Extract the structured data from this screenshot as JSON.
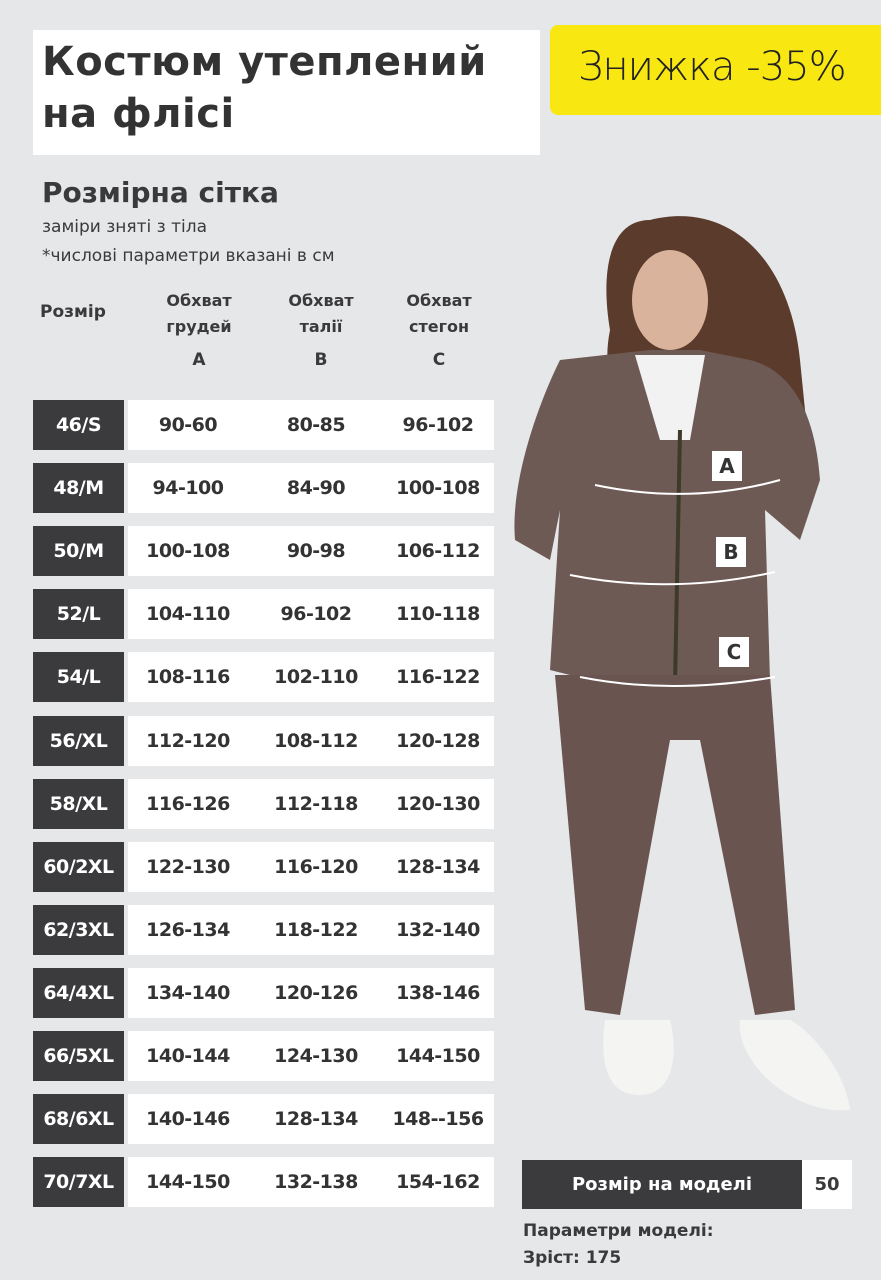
{
  "title": {
    "line1": "Костюм утеплений",
    "line2": "на флісі"
  },
  "badge": {
    "text": "Знижка -35%",
    "color": "#f9e712"
  },
  "size_grid": {
    "heading": "Розмірна сітка",
    "note1": "заміри зняті з тіла",
    "note2": "*числові параметри вказані в см",
    "headers": {
      "size": "Розмір",
      "columns": [
        {
          "line1": "Обхват",
          "line2": "грудей",
          "letter": "A"
        },
        {
          "line1": "Обхват",
          "line2": "талії",
          "letter": "B"
        },
        {
          "line1": "Обхват",
          "line2": "стегон",
          "letter": "C"
        }
      ]
    },
    "rows": [
      {
        "size": "46/S",
        "a": "90-60",
        "b": "80-85",
        "c": "96-102"
      },
      {
        "size": "48/M",
        "a": "94-100",
        "b": "84-90",
        "c": "100-108"
      },
      {
        "size": "50/M",
        "a": "100-108",
        "b": "90-98",
        "c": "106-112"
      },
      {
        "size": "52/L",
        "a": "104-110",
        "b": "96-102",
        "c": "110-118"
      },
      {
        "size": "54/L",
        "a": "108-116",
        "b": "102-110",
        "c": "116-122"
      },
      {
        "size": "56/XL",
        "a": "112-120",
        "b": "108-112",
        "c": "120-128"
      },
      {
        "size": "58/XL",
        "a": "116-126",
        "b": "112-118",
        "c": "120-130"
      },
      {
        "size": "60/2XL",
        "a": "122-130",
        "b": "116-120",
        "c": "128-134"
      },
      {
        "size": "62/3XL",
        "a": "126-134",
        "b": "118-122",
        "c": "132-140"
      },
      {
        "size": "64/4XL",
        "a": "134-140",
        "b": "120-126",
        "c": "138-146"
      },
      {
        "size": "66/5XL",
        "a": "140-144",
        "b": "124-130",
        "c": "144-150"
      },
      {
        "size": "68/6XL",
        "a": "140-146",
        "b": "128-134",
        "c": "148--156"
      },
      {
        "size": "70/7XL",
        "a": "144-150",
        "b": "132-138",
        "c": "154-162"
      }
    ]
  },
  "photo": {
    "markers": [
      "A",
      "B",
      "C"
    ],
    "suit_color": "#6e5a55"
  },
  "model": {
    "size_label": "Розмір на моделі",
    "size_value": "50",
    "params_label": "Параметри моделі:",
    "height": "Зріст: 175"
  }
}
